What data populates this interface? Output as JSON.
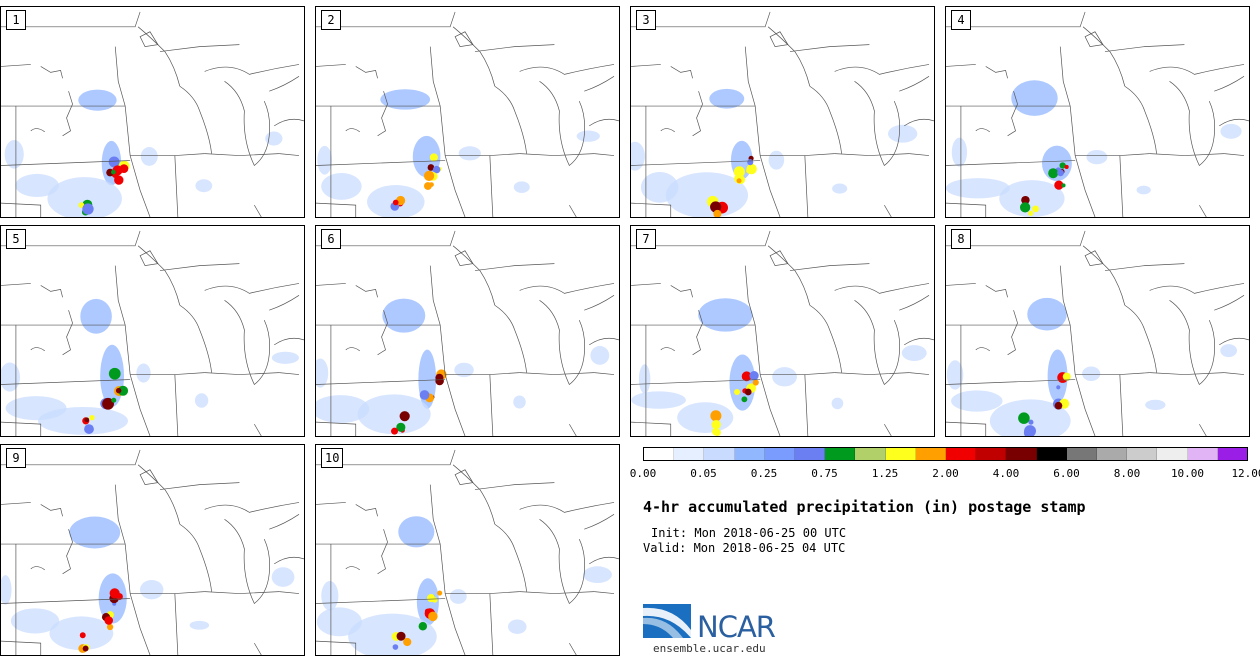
{
  "panels": [
    {
      "label": "1"
    },
    {
      "label": "2"
    },
    {
      "label": "3"
    },
    {
      "label": "4"
    },
    {
      "label": "5"
    },
    {
      "label": "6"
    },
    {
      "label": "7"
    },
    {
      "label": "8"
    },
    {
      "label": "9"
    },
    {
      "label": "10"
    }
  ],
  "colorbar": {
    "colors": [
      "#ffffff",
      "#e6efff",
      "#c9dcff",
      "#91b7ff",
      "#7a9cff",
      "#6b7ff2",
      "#009a1e",
      "#b2d06a",
      "#ffff1e",
      "#ffa000",
      "#f00000",
      "#c00000",
      "#780000",
      "#000000",
      "#777777",
      "#aaaaaa",
      "#cccccc",
      "#eeeeee",
      "#e0b4f5",
      "#9a1ee6"
    ],
    "tick_labels": [
      "0.00",
      "0.05",
      "0.25",
      "0.75",
      "1.25",
      "2.00",
      "4.00",
      "6.00",
      "8.00",
      "10.00",
      "12.00"
    ]
  },
  "title": "4-hr accumulated precipitation (in) postage stamp",
  "init": "Init: Mon 2018-06-25 00 UTC",
  "valid": "Valid: Mon 2018-06-25 04 UTC",
  "logo": {
    "text": "NCAR",
    "url": "ensemble.ucar.edu"
  }
}
